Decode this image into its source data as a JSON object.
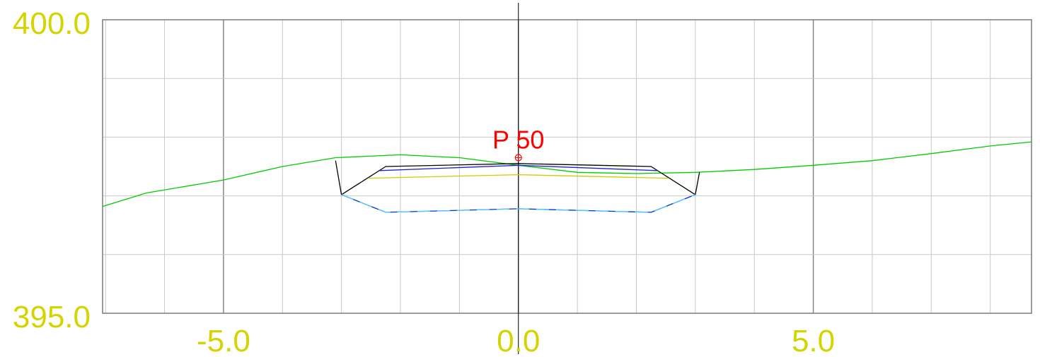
{
  "chart_data": {
    "type": "line",
    "title": "",
    "xlabel": "",
    "ylabel": "",
    "xlim": [
      -7.05,
      8.7
    ],
    "ylim": [
      395.0,
      400.0
    ],
    "grid": true,
    "x_gridlines": [
      -7.0,
      -6.0,
      -5.0,
      -4.0,
      -3.0,
      -2.0,
      -1.0,
      0.0,
      1.0,
      2.0,
      3.0,
      4.0,
      5.0,
      6.0,
      7.0,
      8.0
    ],
    "x_major_gridlines": [
      -5.0,
      0.0,
      5.0
    ],
    "y_gridlines": [
      396.0,
      397.0,
      398.0,
      399.0
    ],
    "x_tick_labels": [
      {
        "value": -5.0,
        "label": "-5.0"
      },
      {
        "value": 0.0,
        "label": "0.0"
      },
      {
        "value": 5.0,
        "label": "5.0"
      }
    ],
    "y_tick_labels": [
      {
        "value": 400.0,
        "label": "400.0"
      },
      {
        "value": 395.0,
        "label": "395.0"
      }
    ],
    "tick_label_color": "#d4d400",
    "annotations": [
      {
        "text": "P 50",
        "x": 0.0,
        "y": 397.65,
        "color": "#ff0000"
      }
    ],
    "series": [
      {
        "color": "#00cc00",
        "points": [
          [
            -7.05,
            396.82
          ],
          [
            -6.3,
            397.05
          ],
          [
            -5.0,
            397.27
          ],
          [
            -4.0,
            397.5
          ],
          [
            -3.1,
            397.65
          ],
          [
            -2.0,
            397.7
          ],
          [
            -1.0,
            397.65
          ],
          [
            0.0,
            397.52
          ],
          [
            1.0,
            397.4
          ],
          [
            2.0,
            397.38
          ],
          [
            3.0,
            397.4
          ],
          [
            4.0,
            397.45
          ],
          [
            5.0,
            397.52
          ],
          [
            6.0,
            397.6
          ],
          [
            7.0,
            397.72
          ],
          [
            8.0,
            397.85
          ],
          [
            8.7,
            397.92
          ]
        ]
      },
      {
        "color": "#000000",
        "points": [
          [
            -3.1,
            397.6
          ],
          [
            -3.0,
            397.02
          ],
          [
            -2.25,
            397.5
          ],
          [
            0.0,
            397.55
          ],
          [
            2.25,
            397.5
          ],
          [
            3.0,
            397.02
          ],
          [
            3.07,
            397.4
          ]
        ]
      },
      {
        "color": "#2222cc",
        "points": [
          [
            -2.35,
            397.43
          ],
          [
            0.0,
            397.52
          ],
          [
            2.35,
            397.43
          ]
        ]
      },
      {
        "color": "#cccc00",
        "points": [
          [
            -2.55,
            397.3
          ],
          [
            0.0,
            397.36
          ],
          [
            2.55,
            397.3
          ]
        ]
      },
      {
        "color": "#0033cc",
        "points": [
          [
            -3.0,
            397.02
          ],
          [
            -2.25,
            396.72
          ],
          [
            0.0,
            396.78
          ],
          [
            2.25,
            396.72
          ],
          [
            3.0,
            397.02
          ]
        ]
      }
    ]
  }
}
